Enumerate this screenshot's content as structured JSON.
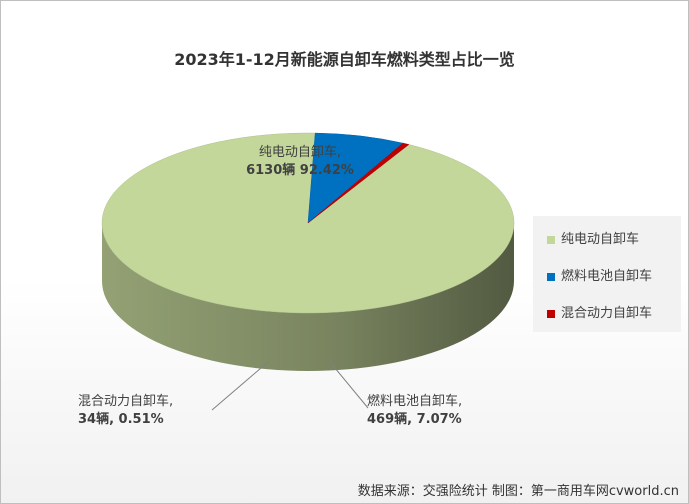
{
  "chart_data": {
    "type": "pie",
    "title": "2023年1-12月新能源自卸车燃料类型占比一览",
    "slices": [
      {
        "name": "纯电动自卸车",
        "value": 6130,
        "percent_label": "92.42%",
        "label_line1": "纯电动自卸车,",
        "label_line2": "6130辆 92.42%",
        "color": "#c4d79b"
      },
      {
        "name": "燃料电池自卸车",
        "value": 469,
        "percent_label": "7.07%",
        "label_line1": "燃料电池自卸车,",
        "label_line2": "469辆, 7.07%",
        "color": "#0070c0"
      },
      {
        "name": "混合动力自卸车",
        "value": 34,
        "percent_label": "0.51%",
        "label_line1": "混合动力自卸车,",
        "label_line2": "34辆, 0.51%",
        "color": "#c00000"
      }
    ],
    "legend_position": "right",
    "style": "3d"
  },
  "source": "数据来源：交强险统计 制图：第一商用车网cvworld.cn"
}
